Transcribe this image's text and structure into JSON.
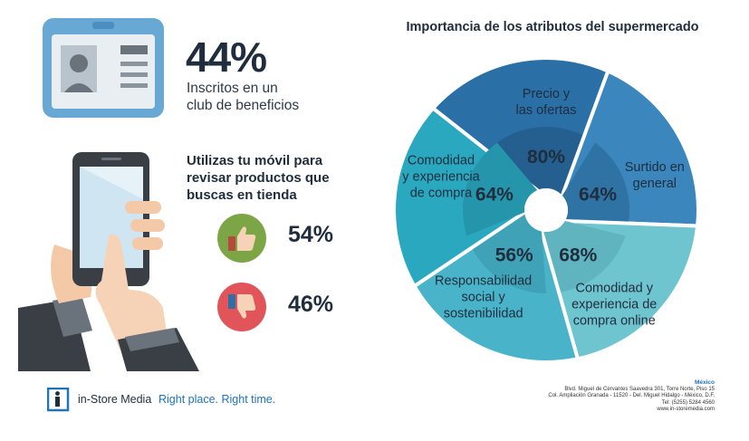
{
  "stat_club": {
    "value": "44%",
    "label_line1": "Inscritos en un",
    "label_line2": "club de beneficios"
  },
  "mobile": {
    "question_line1": "Utilizas tu móvil para",
    "question_line2": "revisar productos que",
    "question_line3": "buscas en tienda",
    "yes_value": "54%",
    "no_value": "46%",
    "thumbs_up_color": "#7ca645",
    "thumbs_down_color": "#e1545a"
  },
  "wheel": {
    "title": "Importancia de los atributos del supermercado",
    "segments": [
      {
        "label_lines": [
          "Precio y",
          "las ofertas"
        ],
        "value": "80%",
        "color": "#2a6fa6",
        "inner_color": "#245f8f"
      },
      {
        "label_lines": [
          "Surtido en",
          "general"
        ],
        "value": "64%",
        "color": "#3a86bd",
        "inner_color": "#2f72a4"
      },
      {
        "label_lines": [
          "Comodidad y",
          "experiencia de",
          "compra online"
        ],
        "value": "68%",
        "color": "#6ec4cf",
        "inner_color": "#5fb4bf"
      },
      {
        "label_lines": [
          "Responsabilidad",
          "social y",
          "sostenibilidad"
        ],
        "value": "56%",
        "color": "#49b4c9",
        "inner_color": "#3fa2b6"
      },
      {
        "label_lines": [
          "Comodidad",
          "y experiencia",
          "de compra"
        ],
        "value": "64%",
        "color": "#2aa8bf",
        "inner_color": "#2595ab"
      }
    ]
  },
  "footer": {
    "brand": "in-Store Media",
    "tagline": "Right place. Right time.",
    "city": "México",
    "address_line1": "Blvd. Miguel de Cervantes Saavedra 301, Torre Norte, Piso 15",
    "address_line2": "Col. Ampliación Granada - 11520 - Del. Miguel Hidalgo - México, D.F.",
    "phone": "Tel: (5255) 5284 4560",
    "website": "www.in-storemedia.com"
  }
}
